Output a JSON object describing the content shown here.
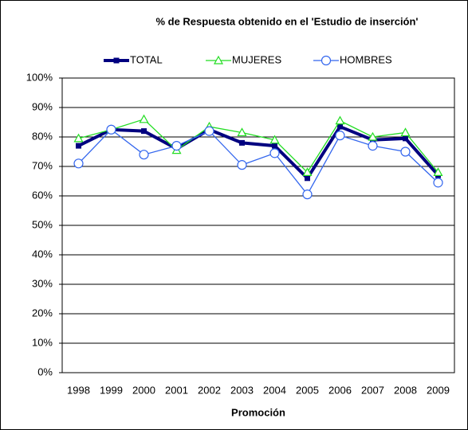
{
  "chart_data": {
    "type": "line",
    "title": "% de Respuesta obtenido en el 'Estudio de inserción'",
    "x_label": "Promoción",
    "categories": [
      "1998",
      "1999",
      "2000",
      "2001",
      "2002",
      "2003",
      "2004",
      "2005",
      "2006",
      "2007",
      "2008",
      "2009"
    ],
    "series": [
      {
        "name": "TOTAL",
        "color": "#000080",
        "marker": "square",
        "values": [
          77,
          82.5,
          82,
          76,
          82.5,
          78,
          77,
          66,
          83.5,
          79,
          79.5,
          67
        ]
      },
      {
        "name": "MUJERES",
        "color": "#22dd22",
        "marker": "triangle",
        "values": [
          79.5,
          82.5,
          86,
          75.5,
          83.5,
          81.5,
          79,
          68,
          85.5,
          80,
          81.5,
          68
        ]
      },
      {
        "name": "HOMBRES",
        "color": "#3366ee",
        "marker": "circle",
        "values": [
          71,
          82.5,
          74,
          77,
          82,
          70.5,
          74.5,
          60.5,
          80.5,
          77,
          75,
          64.5
        ]
      }
    ],
    "ylim": [
      0,
      100
    ],
    "yticks": [
      {
        "value": 0,
        "label": "0%"
      },
      {
        "value": 10,
        "label": "10%"
      },
      {
        "value": 20,
        "label": "20%"
      },
      {
        "value": 30,
        "label": "30%"
      },
      {
        "value": 40,
        "label": "40%"
      },
      {
        "value": 50,
        "label": "50%"
      },
      {
        "value": 60,
        "label": "60%"
      },
      {
        "value": 70,
        "label": "70%"
      },
      {
        "value": 80,
        "label": "80%"
      },
      {
        "value": 90,
        "label": "90%"
      },
      {
        "value": 100,
        "label": "100%"
      }
    ],
    "grid": true,
    "legend": "top"
  }
}
